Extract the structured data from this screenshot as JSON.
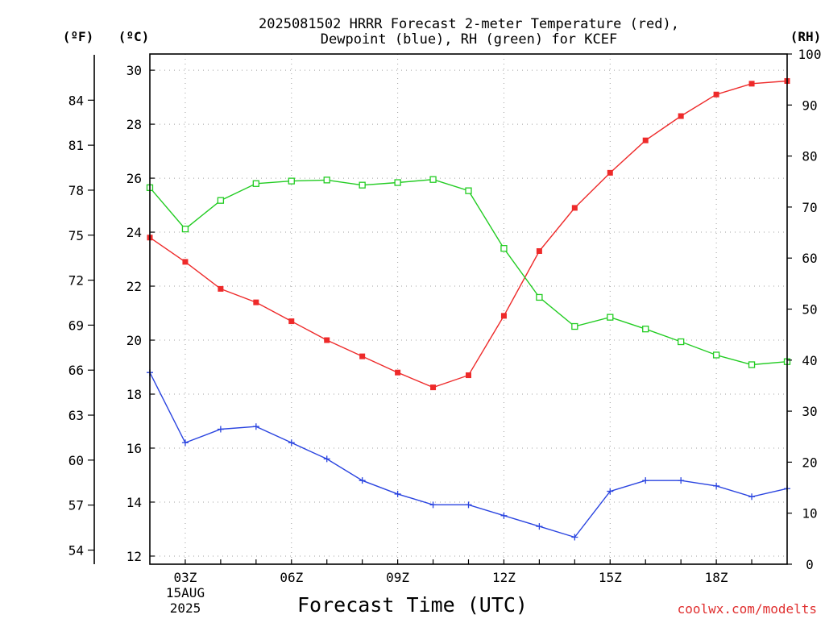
{
  "title_line1": "2025081502 HRRR Forecast 2-meter Temperature (red),",
  "title_line2": "Dewpoint (blue), RH (green) for KCEF",
  "units": {
    "fahrenheit": "(ºF)",
    "celsius": "(ºC)",
    "rh": "(RH)"
  },
  "x_axis_label": "Forecast Time (UTC)",
  "date_label_line1": "15AUG",
  "date_label_line2": "2025",
  "credit": "coolwx.com/modelts",
  "colors": {
    "temperature": "#ee2a2a",
    "dewpoint": "#2a44e0",
    "rh": "#22cc22"
  },
  "chart_data": {
    "type": "line",
    "title": "2025081502 HRRR Forecast 2-meter Temperature (red), Dewpoint (blue), RH (green) for KCEF",
    "xlabel": "Forecast Time (UTC)",
    "x": [
      "02Z",
      "03Z",
      "04Z",
      "05Z",
      "06Z",
      "07Z",
      "08Z",
      "09Z",
      "10Z",
      "11Z",
      "12Z",
      "13Z",
      "14Z",
      "15Z",
      "16Z",
      "17Z",
      "18Z",
      "19Z",
      "20Z"
    ],
    "x_tick_labels": [
      "03Z",
      "06Z",
      "09Z",
      "12Z",
      "15Z",
      "18Z"
    ],
    "x_tick_hours": [
      3,
      6,
      9,
      12,
      15,
      18
    ],
    "x_range": [
      2,
      20
    ],
    "celsius_axis": {
      "label": "(ºC)",
      "range": [
        11.7,
        30.6
      ],
      "ticks": [
        12,
        14,
        16,
        18,
        20,
        22,
        24,
        26,
        28,
        30
      ]
    },
    "fahrenheit_axis": {
      "label": "(ºF)",
      "ticks": [
        54,
        57,
        60,
        63,
        66,
        69,
        72,
        75,
        78,
        81,
        84
      ]
    },
    "rh_axis": {
      "label": "(RH)",
      "range": [
        0,
        100
      ],
      "ticks": [
        0,
        10,
        20,
        30,
        40,
        50,
        60,
        70,
        80,
        90,
        100
      ]
    },
    "series": [
      {
        "values": [
          23.8,
          22.9,
          21.9,
          21.4,
          20.7,
          20.0,
          19.4,
          18.8,
          18.25,
          18.7,
          20.9,
          23.3,
          24.9,
          26.2,
          27.4,
          28.3,
          29.1,
          29.5,
          29.6
        ],
        "axis": "celsius",
        "marker": "filled-square",
        "color": "#ee2a2a"
      },
      {
        "values": [
          18.8,
          16.2,
          16.7,
          16.8,
          16.2,
          15.6,
          14.8,
          14.3,
          13.9,
          13.9,
          13.5,
          13.1,
          12.7,
          14.4,
          14.8,
          14.8,
          14.6,
          14.2,
          14.5
        ],
        "axis": "celsius",
        "marker": "plus",
        "color": "#2a44e0"
      },
      {
        "values": [
          73.8,
          65.7,
          71.3,
          74.6,
          75.1,
          75.3,
          74.3,
          74.8,
          75.4,
          73.2,
          61.9,
          52.3,
          46.6,
          48.4,
          46.1,
          43.6,
          41.0,
          39.1,
          39.7
        ],
        "axis": "rh",
        "marker": "open-square",
        "color": "#22cc22"
      }
    ],
    "grid": true
  }
}
